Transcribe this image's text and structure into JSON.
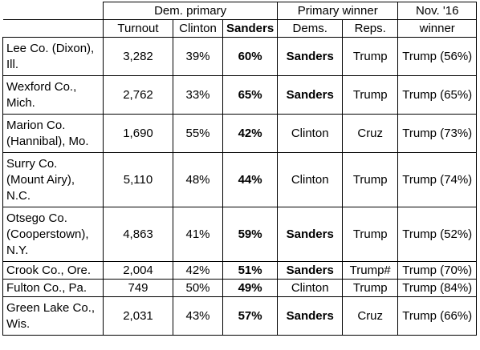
{
  "headers": {
    "dem_primary": "Dem. primary",
    "primary_winner": "Primary winner",
    "nov16_winner_line1": "Nov. '16",
    "nov16_winner_line2": "winner",
    "turnout": "Turnout",
    "clinton": "Clinton",
    "sanders": "Sanders",
    "dems": "Dems.",
    "reps": "Reps."
  },
  "rows": [
    {
      "county_line1": "Lee Co. (Dixon),",
      "county_line2": "Ill.",
      "county_line3": "",
      "turnout": "3,282",
      "clinton": "39%",
      "sanders": "60%",
      "dem_winner": "Sanders",
      "rep_winner": "Trump",
      "nov_winner": "Trump (56%)"
    },
    {
      "county_line1": "Wexford Co.,",
      "county_line2": "Mich.",
      "county_line3": "",
      "turnout": "2,762",
      "clinton": "33%",
      "sanders": "65%",
      "dem_winner": "Sanders",
      "rep_winner": "Trump",
      "nov_winner": "Trump (65%)"
    },
    {
      "county_line1": "Marion Co.",
      "county_line2": "(Hannibal), Mo.",
      "county_line3": "",
      "turnout": "1,690",
      "clinton": "55%",
      "sanders": "42%",
      "dem_winner": "Clinton",
      "rep_winner": "Cruz",
      "nov_winner": "Trump (73%)"
    },
    {
      "county_line1": "Surry Co.",
      "county_line2": "(Mount Airy),",
      "county_line3": "N.C.",
      "turnout": "5,110",
      "clinton": "48%",
      "sanders": "44%",
      "dem_winner": "Clinton",
      "rep_winner": "Trump",
      "nov_winner": "Trump (74%)"
    },
    {
      "county_line1": "Otsego Co.",
      "county_line2": "(Cooperstown),",
      "county_line3": "N.Y.",
      "turnout": "4,863",
      "clinton": "41%",
      "sanders": "59%",
      "dem_winner": "Sanders",
      "rep_winner": "Trump",
      "nov_winner": "Trump (52%)"
    },
    {
      "county_line1": "Crook Co., Ore.",
      "county_line2": "",
      "county_line3": "",
      "turnout": "2,004",
      "clinton": "42%",
      "sanders": "51%",
      "dem_winner": "Sanders",
      "rep_winner": "Trump#",
      "nov_winner": "Trump (70%)"
    },
    {
      "county_line1": "Fulton Co., Pa.",
      "county_line2": "",
      "county_line3": "",
      "turnout": "749",
      "clinton": "50%",
      "sanders": "49%",
      "dem_winner": "Clinton",
      "rep_winner": "Trump",
      "nov_winner": "Trump (84%)"
    },
    {
      "county_line1": "Green Lake Co.,",
      "county_line2": "Wis.",
      "county_line3": "",
      "turnout": "2,031",
      "clinton": "43%",
      "sanders": "57%",
      "dem_winner": "Sanders",
      "rep_winner": "Cruz",
      "nov_winner": "Trump (66%)"
    }
  ]
}
